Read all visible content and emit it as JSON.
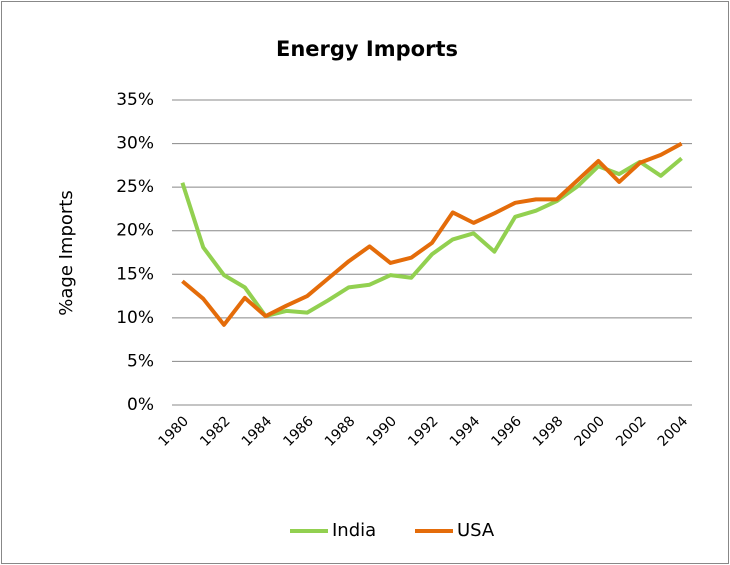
{
  "chart_data": {
    "type": "line",
    "title": "Energy Imports",
    "y_label": "%age Imports",
    "categories": [
      "1980",
      null,
      "1982",
      null,
      "1984",
      null,
      "1986",
      null,
      "1988",
      null,
      "1990",
      null,
      "1992",
      null,
      "1994",
      null,
      "1996",
      null,
      "1998",
      null,
      "2000",
      null,
      "2002",
      null,
      "2004"
    ],
    "series": [
      {
        "name": "India",
        "color": "#92d050",
        "values": [
          25.5,
          18.1,
          14.9,
          13.5,
          10.2,
          10.8,
          10.6,
          12.0,
          13.5,
          13.8,
          14.9,
          14.6,
          17.3,
          19.0,
          19.7,
          17.6,
          21.6,
          22.3,
          23.4,
          25.1,
          27.4,
          26.5,
          27.9,
          26.3,
          28.3
        ]
      },
      {
        "name": "USA",
        "color": "#e46c0a",
        "values": [
          14.2,
          12.2,
          9.2,
          12.3,
          10.2,
          11.4,
          12.5,
          14.5,
          16.5,
          18.2,
          16.3,
          16.9,
          18.6,
          22.1,
          20.9,
          22.0,
          23.2,
          23.6,
          23.6,
          25.8,
          28.0,
          25.6,
          27.8,
          28.7,
          30.0
        ]
      }
    ],
    "ylim": [
      0,
      35
    ],
    "yticks": [
      {
        "value": 0,
        "label": "0%"
      },
      {
        "value": 5,
        "label": "5%"
      },
      {
        "value": 10,
        "label": "10%"
      },
      {
        "value": 15,
        "label": "15%"
      },
      {
        "value": 20,
        "label": "20%"
      },
      {
        "value": 25,
        "label": "25%"
      },
      {
        "value": 30,
        "label": "30%"
      },
      {
        "value": 35,
        "label": "35%"
      }
    ],
    "grid": true,
    "legend": "bottom"
  }
}
